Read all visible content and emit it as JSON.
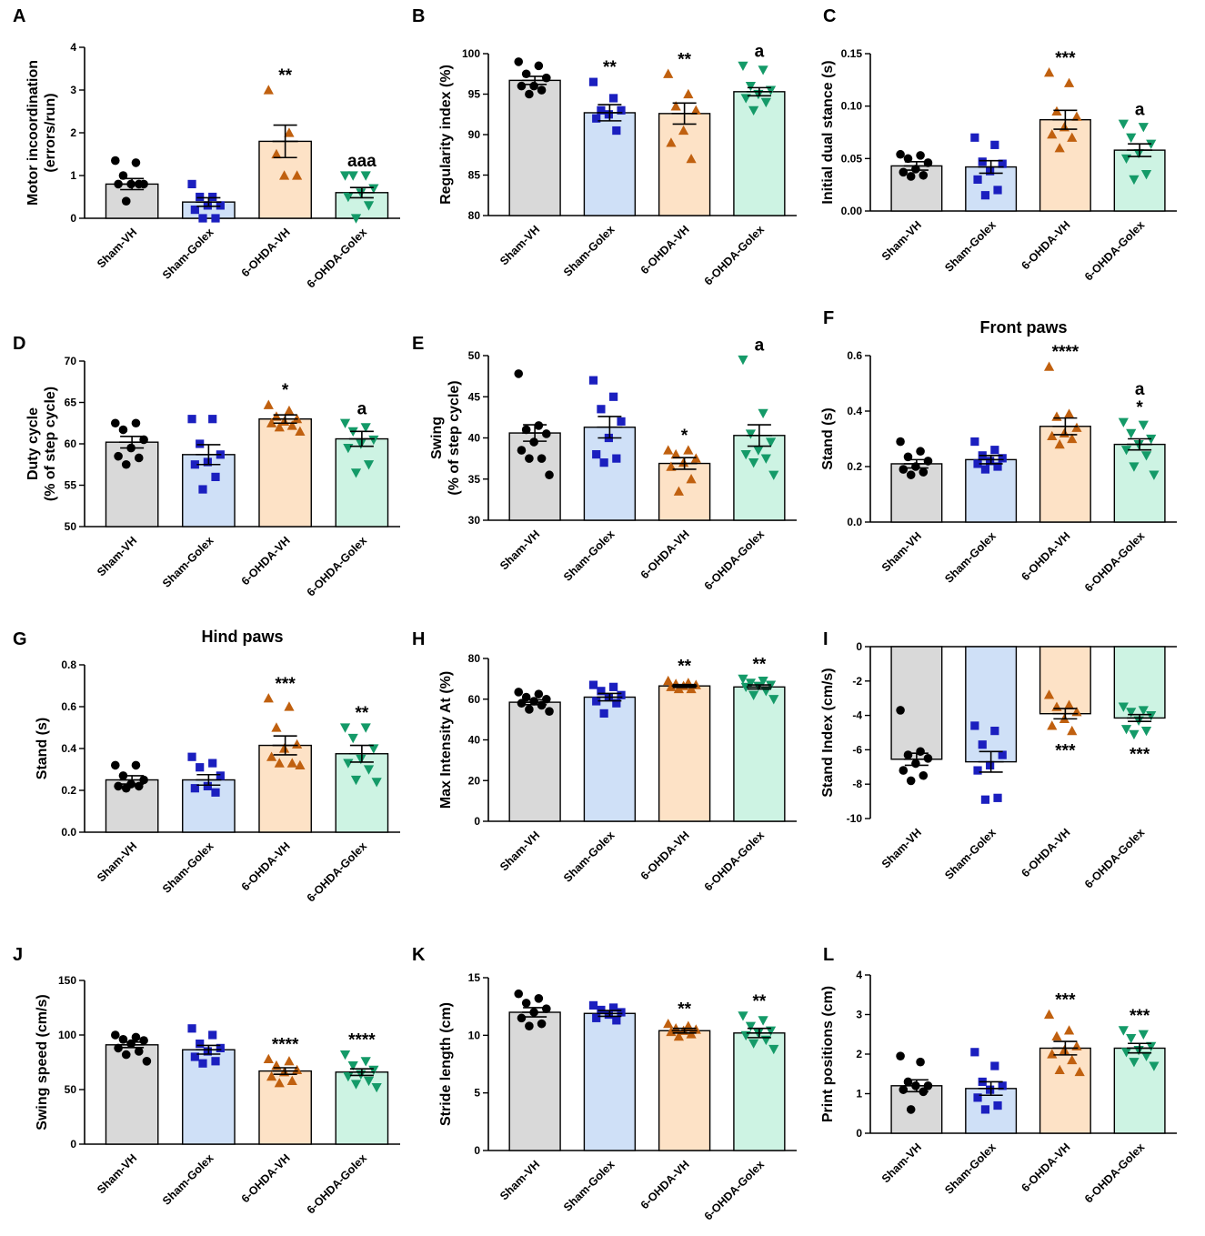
{
  "figure": {
    "groups": [
      "Sham-VH",
      "Sham-Golex",
      "6-OHDA-VH",
      "6-OHDA-Golex"
    ],
    "colors": {
      "bar_fills": [
        "#d9d9d9",
        "#cfe0f7",
        "#fde2c6",
        "#cdf3e3"
      ],
      "markers": [
        "#000000",
        "#1b1fbf",
        "#c0600f",
        "#149a68"
      ]
    },
    "marker_shapes": [
      "circle",
      "square",
      "triangle-up",
      "triangle-down"
    ]
  },
  "chart_data": [
    {
      "panel": "A",
      "type": "bar",
      "title": "",
      "ylabel": "Motor incoordination\n(errors/run)",
      "ylim": [
        0,
        4
      ],
      "yticks": [
        "0",
        "1",
        "2",
        "3",
        "4"
      ],
      "tick_values": [
        0,
        1,
        2,
        3,
        4
      ],
      "categories": [
        "Sham-VH",
        "Sham-Golex",
        "6-OHDA-VH",
        "6-OHDA-Golex"
      ],
      "values": [
        0.8,
        0.38,
        1.8,
        0.6
      ],
      "sem": [
        0.13,
        0.1,
        0.38,
        0.12
      ],
      "points": [
        [
          1.35,
          1.3,
          1.0,
          0.8,
          0.8,
          0.8,
          0.8,
          0.4
        ],
        [
          0.8,
          0.5,
          0.5,
          0.3,
          0.3,
          0.2,
          0.0,
          0.0
        ],
        [
          3.0,
          2.0,
          1.5,
          1.0,
          1.0
        ],
        [
          1.0,
          1.0,
          1.0,
          0.7,
          0.6,
          0.5,
          0.3,
          0.0
        ]
      ],
      "annotations": [
        "",
        "",
        "**",
        "aaa"
      ]
    },
    {
      "panel": "B",
      "type": "bar",
      "title": "",
      "ylabel": "Regularity index (%)",
      "ylim": [
        80,
        100
      ],
      "yticks": [
        "80",
        "85",
        "90",
        "95",
        "100"
      ],
      "tick_values": [
        80,
        85,
        90,
        95,
        100
      ],
      "categories": [
        "Sham-VH",
        "Sham-Golex",
        "6-OHDA-VH",
        "6-OHDA-Golex"
      ],
      "values": [
        96.7,
        92.7,
        92.6,
        95.3
      ],
      "sem": [
        0.5,
        1.0,
        1.3,
        0.5
      ],
      "points": [
        [
          99.0,
          98.5,
          97.5,
          97.0,
          96.0,
          96.0,
          95.5,
          95.0
        ],
        [
          96.5,
          94.5,
          93.0,
          93.0,
          92.5,
          92.0,
          90.5
        ],
        [
          97.5,
          95.0,
          93.5,
          93.0,
          90.5,
          89.0,
          87.0
        ],
        [
          98.5,
          98.0,
          96.0,
          95.5,
          95.0,
          94.5,
          94.0,
          93.0
        ]
      ],
      "annotations": [
        "",
        "**",
        "**",
        "a"
      ]
    },
    {
      "panel": "C",
      "type": "bar",
      "title": "",
      "ylabel": "Initial dual stance (s)",
      "ylim": [
        0,
        0.15
      ],
      "yticks": [
        "0.00",
        "0.05",
        "0.10",
        "0.15"
      ],
      "tick_values": [
        0,
        0.05,
        0.1,
        0.15
      ],
      "categories": [
        "Sham-VH",
        "Sham-Golex",
        "6-OHDA-VH",
        "6-OHDA-Golex"
      ],
      "values": [
        0.043,
        0.042,
        0.087,
        0.058
      ],
      "sem": [
        0.004,
        0.006,
        0.009,
        0.006
      ],
      "points": [
        [
          0.054,
          0.053,
          0.05,
          0.046,
          0.04,
          0.037,
          0.034,
          0.033
        ],
        [
          0.07,
          0.063,
          0.047,
          0.045,
          0.038,
          0.03,
          0.02,
          0.015
        ],
        [
          0.132,
          0.122,
          0.095,
          0.09,
          0.08,
          0.073,
          0.07,
          0.06
        ],
        [
          0.083,
          0.08,
          0.07,
          0.064,
          0.055,
          0.05,
          0.035,
          0.03
        ]
      ],
      "annotations": [
        "",
        "",
        "***",
        "a"
      ]
    },
    {
      "panel": "D",
      "type": "bar",
      "title": "",
      "ylabel": "Duty cycle\n(% of step cycle)",
      "ylim": [
        50,
        70
      ],
      "yticks": [
        "50",
        "55",
        "60",
        "65",
        "70"
      ],
      "tick_values": [
        50,
        55,
        60,
        65,
        70
      ],
      "categories": [
        "Sham-VH",
        "Sham-Golex",
        "6-OHDA-VH",
        "6-OHDA-Golex"
      ],
      "values": [
        60.2,
        58.7,
        63.0,
        60.6
      ],
      "sem": [
        0.7,
        1.2,
        0.5,
        0.9
      ],
      "points": [
        [
          62.5,
          62.5,
          61.7,
          60.5,
          59.5,
          58.5,
          58.3,
          57.5
        ],
        [
          63.0,
          63.0,
          60.0,
          58.7,
          57.8,
          57.5,
          56.0,
          54.5
        ],
        [
          64.7,
          64.0,
          63.3,
          63.0,
          62.7,
          62.5,
          62.2,
          62.0,
          61.5
        ],
        [
          62.5,
          62.0,
          61.5,
          60.5,
          60.0,
          59.5,
          57.5,
          56.5
        ]
      ],
      "annotations": [
        "",
        "",
        "*",
        "a"
      ]
    },
    {
      "panel": "E",
      "type": "bar",
      "title": "",
      "ylabel": "Swing\n(% of step cycle)",
      "ylim": [
        30,
        50
      ],
      "yticks": [
        "30",
        "35",
        "40",
        "45",
        "50"
      ],
      "tick_values": [
        30,
        35,
        40,
        45,
        50
      ],
      "categories": [
        "Sham-VH",
        "Sham-Golex",
        "6-OHDA-VH",
        "6-OHDA-Golex"
      ],
      "values": [
        40.6,
        41.3,
        36.9,
        40.3
      ],
      "sem": [
        1.0,
        1.3,
        0.7,
        1.3
      ],
      "points": [
        [
          47.8,
          41.5,
          41.0,
          40.5,
          39.5,
          38.5,
          37.5,
          37.5,
          35.5
        ],
        [
          47.0,
          45.0,
          43.5,
          42.0,
          40.0,
          38.0,
          37.5,
          37.0
        ],
        [
          38.5,
          38.5,
          38.0,
          37.5,
          37.0,
          36.5,
          35.0,
          33.5
        ],
        [
          49.5,
          43.0,
          40.5,
          39.5,
          38.5,
          38.0,
          37.5,
          37.0,
          35.5
        ]
      ],
      "annotations": [
        "",
        "",
        "*",
        "a"
      ]
    },
    {
      "panel": "F",
      "type": "bar",
      "title": "Front paws",
      "ylabel": "Stand (s)",
      "ylim": [
        0,
        0.6
      ],
      "yticks": [
        "0.0",
        "0.2",
        "0.4",
        "0.6"
      ],
      "tick_values": [
        0,
        0.2,
        0.4,
        0.6
      ],
      "categories": [
        "Sham-VH",
        "Sham-Golex",
        "6-OHDA-VH",
        "6-OHDA-Golex"
      ],
      "values": [
        0.21,
        0.225,
        0.345,
        0.28
      ],
      "sem": [
        0.015,
        0.015,
        0.03,
        0.02
      ],
      "points": [
        [
          0.29,
          0.255,
          0.235,
          0.22,
          0.2,
          0.19,
          0.18,
          0.17
        ],
        [
          0.29,
          0.26,
          0.24,
          0.23,
          0.22,
          0.21,
          0.2,
          0.19
        ],
        [
          0.56,
          0.39,
          0.38,
          0.34,
          0.32,
          0.31,
          0.3,
          0.28
        ],
        [
          0.36,
          0.35,
          0.32,
          0.3,
          0.28,
          0.26,
          0.24,
          0.2,
          0.17
        ]
      ],
      "annotations": [
        "",
        "",
        "****",
        "a\n*"
      ]
    },
    {
      "panel": "G",
      "type": "bar",
      "title": "Hind paws",
      "ylabel": "Stand (s)",
      "ylim": [
        0,
        0.8
      ],
      "yticks": [
        "0.0",
        "0.2",
        "0.4",
        "0.6",
        "0.8"
      ],
      "tick_values": [
        0,
        0.2,
        0.4,
        0.6,
        0.8
      ],
      "categories": [
        "Sham-VH",
        "Sham-Golex",
        "6-OHDA-VH",
        "6-OHDA-Golex"
      ],
      "values": [
        0.25,
        0.25,
        0.415,
        0.375
      ],
      "sem": [
        0.02,
        0.025,
        0.045,
        0.04
      ],
      "points": [
        [
          0.32,
          0.32,
          0.27,
          0.25,
          0.23,
          0.22,
          0.22,
          0.21
        ],
        [
          0.36,
          0.33,
          0.31,
          0.27,
          0.22,
          0.21,
          0.19
        ],
        [
          0.64,
          0.6,
          0.5,
          0.42,
          0.4,
          0.36,
          0.33,
          0.33,
          0.32
        ],
        [
          0.5,
          0.5,
          0.45,
          0.4,
          0.35,
          0.33,
          0.3,
          0.25,
          0.24
        ]
      ],
      "annotations": [
        "",
        "",
        "***",
        "**"
      ]
    },
    {
      "panel": "H",
      "type": "bar",
      "title": "",
      "ylabel": "Max Intensity At (%)",
      "ylim": [
        0,
        80
      ],
      "yticks": [
        "0",
        "20",
        "40",
        "60",
        "80"
      ],
      "tick_values": [
        0,
        20,
        40,
        60,
        80
      ],
      "categories": [
        "Sham-VH",
        "Sham-Golex",
        "6-OHDA-VH",
        "6-OHDA-Golex"
      ],
      "values": [
        58.5,
        61.0,
        66.5,
        66.0
      ],
      "sem": [
        1.2,
        1.8,
        0.7,
        1.0
      ],
      "points": [
        [
          63.5,
          62.5,
          61.0,
          60.0,
          59.0,
          58.0,
          57.0,
          55.0,
          54.0
        ],
        [
          67.0,
          66.0,
          64.0,
          62.0,
          61.0,
          59.0,
          58.0,
          53.0
        ],
        [
          69.0,
          68.0,
          67.5,
          67.0,
          66.5,
          66.0,
          65.0,
          65.0
        ],
        [
          70.0,
          69.0,
          68.0,
          67.0,
          66.5,
          66.0,
          64.0,
          62.0,
          60.0
        ]
      ],
      "annotations": [
        "",
        "",
        "**",
        "**"
      ]
    },
    {
      "panel": "I",
      "type": "bar",
      "title": "",
      "ylabel": "Stand Index (cm/s)",
      "ylim": [
        -10,
        0
      ],
      "yticks": [
        "-10",
        "-8",
        "-6",
        "-4",
        "-2",
        "0"
      ],
      "tick_values": [
        -10,
        -8,
        -6,
        -4,
        -2,
        0
      ],
      "categories": [
        "Sham-VH",
        "Sham-Golex",
        "6-OHDA-VH",
        "6-OHDA-Golex"
      ],
      "values": [
        -6.55,
        -6.7,
        -3.9,
        -4.15
      ],
      "sem": [
        0.35,
        0.6,
        0.3,
        0.2
      ],
      "points": [
        [
          -3.7,
          -6.1,
          -6.3,
          -6.5,
          -6.8,
          -7.2,
          -7.5,
          -7.8
        ],
        [
          -4.6,
          -4.9,
          -5.7,
          -6.3,
          -6.9,
          -7.2,
          -8.8,
          -8.9
        ],
        [
          -2.8,
          -3.4,
          -3.5,
          -3.8,
          -4.2,
          -4.6,
          -4.9
        ],
        [
          -3.5,
          -3.7,
          -3.8,
          -4.0,
          -4.3,
          -4.8,
          -4.9,
          -5.1
        ]
      ],
      "annotations": [
        "",
        "",
        "***",
        "***"
      ]
    },
    {
      "panel": "J",
      "type": "bar",
      "title": "",
      "ylabel": "Swing speed (cm/s)",
      "ylim": [
        0,
        150
      ],
      "yticks": [
        "0",
        "50",
        "100",
        "150"
      ],
      "tick_values": [
        0,
        50,
        100,
        150
      ],
      "categories": [
        "Sham-VH",
        "Sham-Golex",
        "6-OHDA-VH",
        "6-OHDA-Golex"
      ],
      "values": [
        91.0,
        86.5,
        67.0,
        66.0
      ],
      "sem": [
        2.5,
        4.0,
        3.0,
        3.0
      ],
      "points": [
        [
          100.0,
          98.0,
          96.0,
          95.0,
          92.0,
          88.0,
          85.0,
          82.0,
          76.0
        ],
        [
          106.0,
          100.0,
          92.0,
          88.0,
          85.0,
          80.0,
          76.0,
          74.0
        ],
        [
          78.0,
          76.0,
          72.0,
          68.0,
          66.0,
          62.0,
          58.0,
          56.0
        ],
        [
          82.0,
          76.0,
          72.0,
          68.0,
          64.0,
          62.0,
          58.0,
          55.0,
          52.0
        ]
      ],
      "annotations": [
        "",
        "",
        "****",
        "****"
      ]
    },
    {
      "panel": "K",
      "type": "bar",
      "title": "",
      "ylabel": "Stride length (cm)",
      "ylim": [
        0,
        15
      ],
      "yticks": [
        "0",
        "5",
        "10",
        "15"
      ],
      "tick_values": [
        0,
        5,
        10,
        15
      ],
      "categories": [
        "Sham-VH",
        "Sham-Golex",
        "6-OHDA-VH",
        "6-OHDA-Golex"
      ],
      "values": [
        12.0,
        11.9,
        10.4,
        10.2
      ],
      "sem": [
        0.4,
        0.25,
        0.2,
        0.4
      ],
      "points": [
        [
          13.6,
          13.2,
          12.8,
          12.3,
          12.0,
          11.5,
          11.0,
          10.8
        ],
        [
          12.6,
          12.4,
          12.2,
          12.0,
          11.8,
          11.5,
          11.3
        ],
        [
          11.0,
          10.8,
          10.6,
          10.5,
          10.4,
          10.3,
          10.1,
          9.9
        ],
        [
          11.7,
          11.3,
          10.8,
          10.4,
          10.2,
          10.0,
          9.6,
          9.3,
          8.8
        ]
      ],
      "annotations": [
        "",
        "",
        "**",
        "**"
      ]
    },
    {
      "panel": "L",
      "type": "bar",
      "title": "",
      "ylabel": "Print positions (cm)",
      "ylim": [
        0,
        4
      ],
      "yticks": [
        "0",
        "1",
        "2",
        "3",
        "4"
      ],
      "tick_values": [
        0,
        1,
        2,
        3,
        4
      ],
      "categories": [
        "Sham-VH",
        "Sham-Golex",
        "6-OHDA-VH",
        "6-OHDA-Golex"
      ],
      "values": [
        1.2,
        1.13,
        2.15,
        2.15
      ],
      "sem": [
        0.15,
        0.17,
        0.17,
        0.12
      ],
      "points": [
        [
          1.95,
          1.8,
          1.3,
          1.2,
          1.2,
          1.1,
          1.05,
          0.6
        ],
        [
          2.05,
          1.7,
          1.3,
          1.2,
          1.1,
          0.9,
          0.7,
          0.6
        ],
        [
          3.0,
          2.6,
          2.45,
          2.2,
          2.1,
          2.0,
          1.85,
          1.6,
          1.55
        ],
        [
          2.6,
          2.5,
          2.4,
          2.2,
          2.1,
          2.05,
          1.95,
          1.8,
          1.7
        ]
      ],
      "annotations": [
        "",
        "",
        "***",
        "***"
      ]
    }
  ]
}
